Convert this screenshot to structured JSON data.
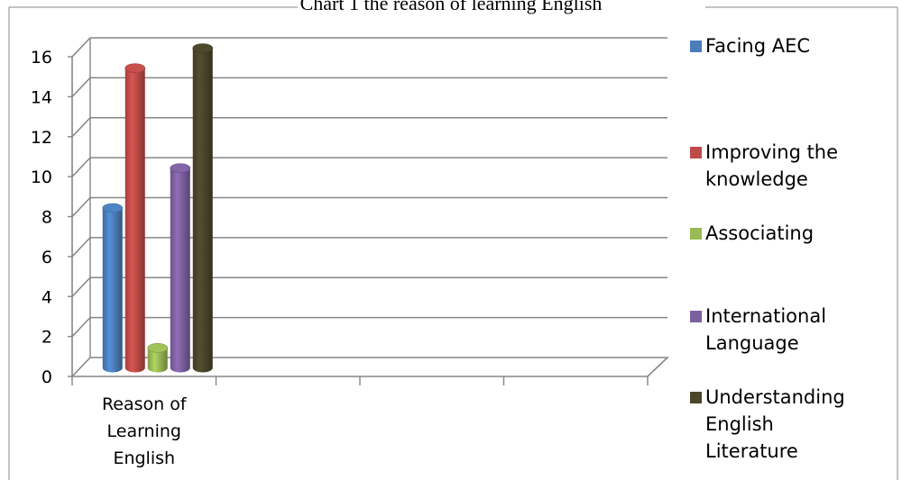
{
  "chart_data": {
    "type": "bar",
    "title": "Chart 1 the reason of learning English",
    "categories": [
      "Reason of Learning English"
    ],
    "series": [
      {
        "name": "Facing AEC",
        "values": [
          8
        ],
        "color": "#4a7ebb"
      },
      {
        "name": "Improving the knowledge",
        "values": [
          15
        ],
        "color": "#be4b48"
      },
      {
        "name": "Associating",
        "values": [
          1
        ],
        "color": "#98b954"
      },
      {
        "name": "International Language",
        "values": [
          10
        ],
        "color": "#7d60a0"
      },
      {
        "name": "Understanding English Literature",
        "values": [
          16
        ],
        "color": "#4a452a"
      }
    ],
    "yticks": [
      0,
      2,
      4,
      6,
      8,
      10,
      12,
      14,
      16
    ],
    "ylim": [
      0,
      16
    ],
    "grid": true,
    "legend_position": "right",
    "xlabel": "",
    "ylabel": ""
  }
}
